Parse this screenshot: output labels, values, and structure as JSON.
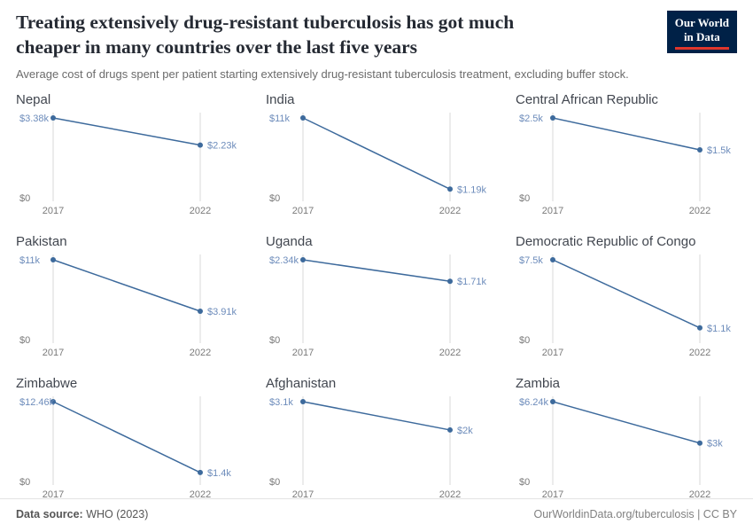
{
  "header": {
    "title": "Treating extensively drug-resistant tuberculosis has got much cheaper in many countries over the last five years",
    "subtitle": "Average cost of drugs spent per patient starting extensively drug-resistant tuberculosis treatment, excluding buffer stock.",
    "logo": {
      "line1": "Our World",
      "line2": "in Data"
    }
  },
  "footer": {
    "source_label": "Data source:",
    "source_value": " WHO (2023)",
    "right_text": "OurWorldinData.org/tuberculosis | CC BY"
  },
  "colors": {
    "line": "#3d6a9c",
    "value_label": "#6d8cbb",
    "grid": "#d9d9d9",
    "tick": "#7a7a7a"
  },
  "chart_data": [
    {
      "type": "line",
      "title": "Nepal",
      "x": [
        2017,
        2022
      ],
      "values": [
        3380,
        2230
      ],
      "value_labels": [
        "$3.38k",
        "$2.23k"
      ],
      "y0_label": "$0",
      "x_tick_labels": [
        "2017",
        "2022"
      ],
      "ylim": [
        0,
        3380
      ]
    },
    {
      "type": "line",
      "title": "India",
      "x": [
        2017,
        2022
      ],
      "values": [
        11000,
        1190
      ],
      "value_labels": [
        "$11k",
        "$1.19k"
      ],
      "y0_label": "$0",
      "x_tick_labels": [
        "2017",
        "2022"
      ],
      "ylim": [
        0,
        11000
      ]
    },
    {
      "type": "line",
      "title": "Central African Republic",
      "x": [
        2017,
        2022
      ],
      "values": [
        2500,
        1500
      ],
      "value_labels": [
        "$2.5k",
        "$1.5k"
      ],
      "y0_label": "$0",
      "x_tick_labels": [
        "2017",
        "2022"
      ],
      "ylim": [
        0,
        2500
      ]
    },
    {
      "type": "line",
      "title": "Pakistan",
      "x": [
        2017,
        2022
      ],
      "values": [
        11000,
        3910
      ],
      "value_labels": [
        "$11k",
        "$3.91k"
      ],
      "y0_label": "$0",
      "x_tick_labels": [
        "2017",
        "2022"
      ],
      "ylim": [
        0,
        11000
      ]
    },
    {
      "type": "line",
      "title": "Uganda",
      "x": [
        2017,
        2022
      ],
      "values": [
        2340,
        1710
      ],
      "value_labels": [
        "$2.34k",
        "$1.71k"
      ],
      "y0_label": "$0",
      "x_tick_labels": [
        "2017",
        "2022"
      ],
      "ylim": [
        0,
        2340
      ]
    },
    {
      "type": "line",
      "title": "Democratic Republic of Congo",
      "x": [
        2017,
        2022
      ],
      "values": [
        7500,
        1100
      ],
      "value_labels": [
        "$7.5k",
        "$1.1k"
      ],
      "y0_label": "$0",
      "x_tick_labels": [
        "2017",
        "2022"
      ],
      "ylim": [
        0,
        7500
      ]
    },
    {
      "type": "line",
      "title": "Zimbabwe",
      "x": [
        2017,
        2022
      ],
      "values": [
        12460,
        1400
      ],
      "value_labels": [
        "$12.46k",
        "$1.4k"
      ],
      "y0_label": "$0",
      "x_tick_labels": [
        "2017",
        "2022"
      ],
      "ylim": [
        0,
        12460
      ]
    },
    {
      "type": "line",
      "title": "Afghanistan",
      "x": [
        2017,
        2022
      ],
      "values": [
        3100,
        2000
      ],
      "value_labels": [
        "$3.1k",
        "$2k"
      ],
      "y0_label": "$0",
      "x_tick_labels": [
        "2017",
        "2022"
      ],
      "ylim": [
        0,
        3100
      ]
    },
    {
      "type": "line",
      "title": "Zambia",
      "x": [
        2017,
        2022
      ],
      "values": [
        6240,
        3000
      ],
      "value_labels": [
        "$6.24k",
        "$3k"
      ],
      "y0_label": "$0",
      "x_tick_labels": [
        "2017",
        "2022"
      ],
      "ylim": [
        0,
        6240
      ]
    }
  ]
}
